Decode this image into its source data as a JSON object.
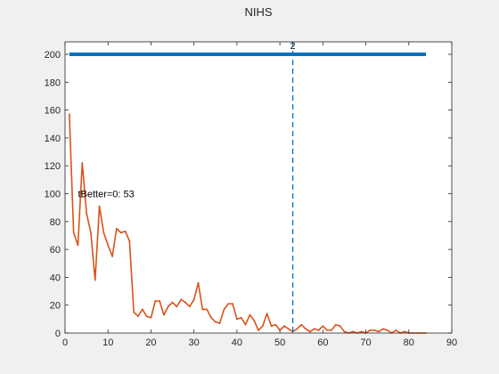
{
  "chart_data": {
    "type": "line",
    "title": "NIHS",
    "xlabel": "",
    "ylabel": "",
    "xlim": [
      0,
      90
    ],
    "ylim": [
      0,
      200
    ],
    "xticks": [
      0,
      10,
      20,
      30,
      40,
      50,
      60,
      70,
      80,
      90
    ],
    "yticks": [
      0,
      20,
      40,
      60,
      80,
      100,
      120,
      140,
      160,
      180,
      200
    ],
    "grid": false,
    "background": "#f0f0f0",
    "axes_background": "#ffffff",
    "series": [
      {
        "color": "#d95319",
        "x": [
          1,
          2,
          3,
          4,
          5,
          6,
          7,
          8,
          9,
          10,
          11,
          12,
          13,
          14,
          15,
          16,
          17,
          18,
          19,
          20,
          21,
          22,
          23,
          24,
          25,
          26,
          27,
          28,
          29,
          30,
          31,
          32,
          33,
          34,
          35,
          36,
          37,
          38,
          39,
          40,
          41,
          42,
          43,
          44,
          45,
          46,
          47,
          48,
          49,
          50,
          51,
          52,
          53,
          54,
          55,
          56,
          57,
          58,
          59,
          60,
          61,
          62,
          63,
          64,
          65,
          66,
          67,
          68,
          69,
          70,
          71,
          72,
          73,
          74,
          75,
          76,
          77,
          78,
          79,
          80,
          81,
          82,
          83,
          84
        ],
        "y": [
          157,
          72,
          63,
          122,
          86,
          72,
          38,
          91,
          72,
          63,
          55,
          75,
          72,
          73,
          66,
          15,
          12,
          17,
          12,
          11,
          23,
          23,
          13,
          19,
          22,
          19,
          24,
          22,
          19,
          24,
          36,
          17,
          17,
          11,
          8,
          7,
          17,
          21,
          21,
          10,
          11,
          6,
          13,
          9,
          2,
          5,
          14,
          5,
          6,
          2,
          5,
          3,
          1,
          3,
          6,
          3,
          1,
          3,
          2,
          5,
          2,
          2,
          6,
          5,
          1,
          0,
          1,
          0,
          1,
          0,
          2,
          2,
          1,
          3,
          2,
          0,
          2,
          0,
          1,
          0,
          0,
          0,
          0,
          0
        ]
      },
      {
        "color": "#0072bd",
        "x": [
          1,
          84
        ],
        "y": [
          200,
          200
        ]
      }
    ],
    "vline": {
      "x": 53,
      "color": "#0072bd",
      "style": "dashed"
    },
    "annotations": {
      "top_label": {
        "text": "2",
        "x": 53
      },
      "inner_label": {
        "text": "tBetter=0: 53",
        "x": 3,
        "y": 100
      }
    }
  }
}
